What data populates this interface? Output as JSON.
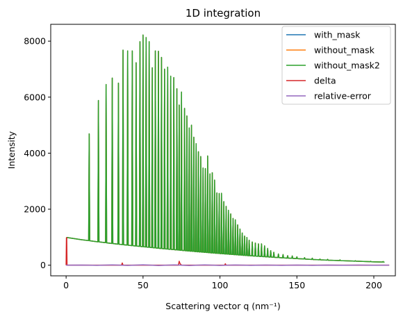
{
  "chart_data": {
    "type": "line",
    "title": "1D integration",
    "xlabel": "Scattering vector q (nm⁻¹)",
    "ylabel": "Intensity",
    "xlim": [
      -10,
      214
    ],
    "ylim": [
      -380,
      8600
    ],
    "xticks": [
      0,
      50,
      100,
      150,
      200
    ],
    "yticks": [
      0,
      2000,
      4000,
      6000,
      8000
    ],
    "xtick_labels": [
      "0",
      "50",
      "100",
      "150",
      "200"
    ],
    "ytick_labels": [
      "0",
      "2000",
      "4000",
      "6000",
      "8000"
    ],
    "grid": false,
    "legend_position": "top-right",
    "baseline": {
      "x": [
        0.3,
        10,
        20,
        30,
        40,
        50,
        60,
        70,
        80,
        90,
        100,
        110,
        120,
        130,
        140,
        150,
        160,
        170,
        180,
        190,
        200,
        207
      ],
      "y": [
        990,
        910,
        840,
        775,
        715,
        660,
        605,
        555,
        505,
        460,
        415,
        375,
        335,
        300,
        265,
        235,
        205,
        180,
        160,
        140,
        120,
        110
      ]
    },
    "peaks": [
      {
        "x": 15,
        "y": 4690
      },
      {
        "x": 21,
        "y": 5880
      },
      {
        "x": 26,
        "y": 6450
      },
      {
        "x": 30,
        "y": 6680
      },
      {
        "x": 34,
        "y": 6500
      },
      {
        "x": 37,
        "y": 7680
      },
      {
        "x": 40,
        "y": 7650
      },
      {
        "x": 43,
        "y": 7650
      },
      {
        "x": 45.5,
        "y": 7230
      },
      {
        "x": 48,
        "y": 7980
      },
      {
        "x": 50,
        "y": 8220
      },
      {
        "x": 52,
        "y": 8130
      },
      {
        "x": 54,
        "y": 7980
      },
      {
        "x": 56,
        "y": 7050
      },
      {
        "x": 58,
        "y": 7650
      },
      {
        "x": 60,
        "y": 7640
      },
      {
        "x": 62,
        "y": 7420
      },
      {
        "x": 64,
        "y": 7000
      },
      {
        "x": 66,
        "y": 7070
      },
      {
        "x": 68,
        "y": 6750
      },
      {
        "x": 70,
        "y": 6700
      },
      {
        "x": 72,
        "y": 6300
      },
      {
        "x": 73.5,
        "y": 5720
      },
      {
        "x": 75,
        "y": 6180
      },
      {
        "x": 77,
        "y": 5600
      },
      {
        "x": 78.5,
        "y": 5330
      },
      {
        "x": 80,
        "y": 4900
      },
      {
        "x": 81.5,
        "y": 5000
      },
      {
        "x": 83,
        "y": 4570
      },
      {
        "x": 84.5,
        "y": 4340
      },
      {
        "x": 86,
        "y": 4050
      },
      {
        "x": 87.5,
        "y": 3880
      },
      {
        "x": 89,
        "y": 3470
      },
      {
        "x": 90.5,
        "y": 3450
      },
      {
        "x": 92,
        "y": 3900
      },
      {
        "x": 93.5,
        "y": 3260
      },
      {
        "x": 95,
        "y": 3300
      },
      {
        "x": 96.5,
        "y": 3040
      },
      {
        "x": 98,
        "y": 2580
      },
      {
        "x": 99.5,
        "y": 2560
      },
      {
        "x": 101,
        "y": 2570
      },
      {
        "x": 102.5,
        "y": 2270
      },
      {
        "x": 104,
        "y": 2100
      },
      {
        "x": 105.5,
        "y": 1960
      },
      {
        "x": 107,
        "y": 1830
      },
      {
        "x": 108.5,
        "y": 1670
      },
      {
        "x": 110,
        "y": 1620
      },
      {
        "x": 111.5,
        "y": 1440
      },
      {
        "x": 113,
        "y": 1290
      },
      {
        "x": 114.5,
        "y": 1150
      },
      {
        "x": 116,
        "y": 1040
      },
      {
        "x": 117.5,
        "y": 990
      },
      {
        "x": 119,
        "y": 890
      },
      {
        "x": 121,
        "y": 830
      },
      {
        "x": 123,
        "y": 790
      },
      {
        "x": 125,
        "y": 760
      },
      {
        "x": 127,
        "y": 760
      },
      {
        "x": 129,
        "y": 690
      },
      {
        "x": 131,
        "y": 600
      },
      {
        "x": 133,
        "y": 520
      },
      {
        "x": 135,
        "y": 460
      },
      {
        "x": 138,
        "y": 400
      },
      {
        "x": 141,
        "y": 380
      },
      {
        "x": 144,
        "y": 340
      },
      {
        "x": 147,
        "y": 330
      },
      {
        "x": 150,
        "y": 300
      },
      {
        "x": 155,
        "y": 270
      },
      {
        "x": 160,
        "y": 250
      },
      {
        "x": 165,
        "y": 220
      },
      {
        "x": 170,
        "y": 210
      },
      {
        "x": 178,
        "y": 190
      },
      {
        "x": 188,
        "y": 160
      },
      {
        "x": 198,
        "y": 140
      },
      {
        "x": 206,
        "y": 130
      }
    ],
    "delta": {
      "x": [
        0,
        0.2,
        0.4,
        0.6,
        1,
        2,
        36,
        36.5,
        37,
        73,
        73.5,
        74,
        75,
        103,
        103.5,
        104,
        210
      ],
      "y": [
        0,
        980,
        980,
        0,
        0,
        0,
        0,
        80,
        0,
        0,
        140,
        60,
        0,
        0,
        50,
        0,
        0
      ]
    },
    "relative_error": {
      "x": [
        0,
        10,
        20,
        30,
        40,
        50,
        60,
        70,
        80,
        90,
        100,
        110,
        120,
        130,
        140,
        150,
        160,
        170,
        180,
        190,
        200,
        210
      ],
      "y": [
        0,
        5,
        -5,
        10,
        -8,
        15,
        -10,
        12,
        -10,
        10,
        -8,
        8,
        -6,
        6,
        -5,
        5,
        -4,
        4,
        -3,
        3,
        -2,
        0
      ]
    },
    "series": [
      {
        "name": "with_mask",
        "color": "#1f77b4",
        "source": "main"
      },
      {
        "name": "without_mask",
        "color": "#ff7f0e",
        "source": "main"
      },
      {
        "name": "without_mask2",
        "color": "#2ca02c",
        "source": "main"
      },
      {
        "name": "delta",
        "color": "#d62728",
        "source": "delta"
      },
      {
        "name": "relative-error",
        "color": "#9467bd",
        "source": "relative_error"
      }
    ]
  }
}
